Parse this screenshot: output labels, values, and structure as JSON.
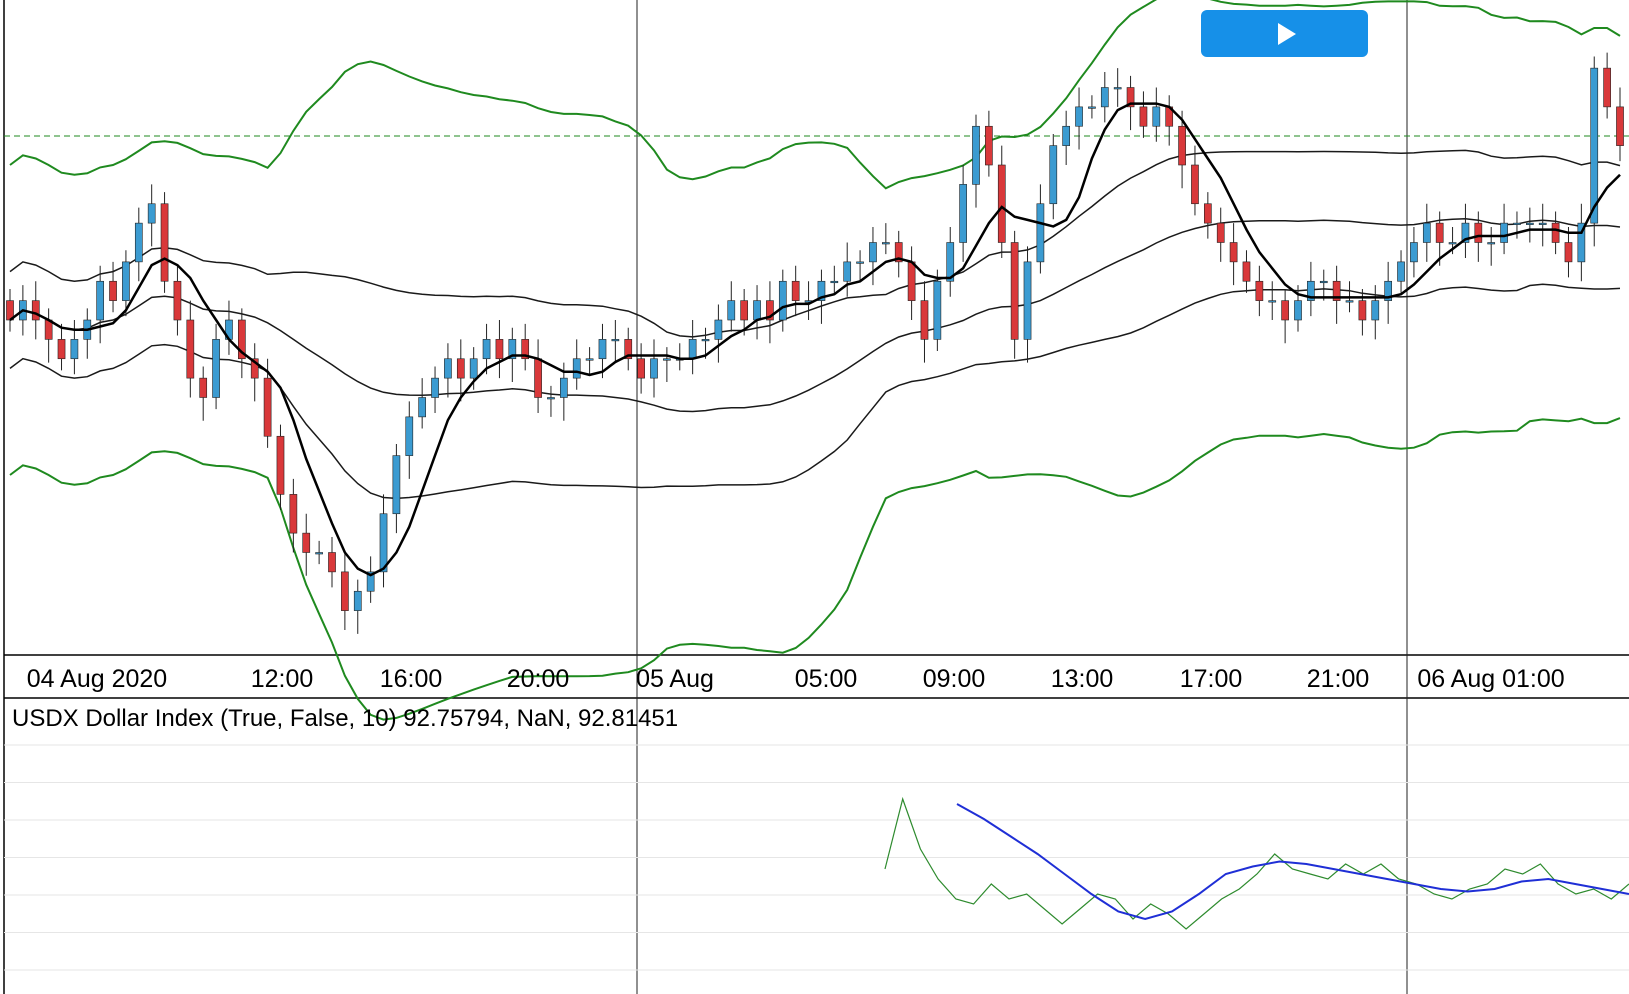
{
  "toolbar": {
    "play_icon": "play-icon",
    "accent": "#1690e8"
  },
  "colors": {
    "up_candle": "#3b9bd1",
    "down_candle": "#d9383a",
    "wick": "#222222",
    "band_outer": "#1f8a1f",
    "band_inner": "#1a1a1a",
    "ma": "#000000",
    "osc_fast": "#2e8b2e",
    "osc_slow": "#1f2fd6",
    "grid": "#e6e6e6",
    "session_line": "#222222"
  },
  "chart_data": [
    {
      "type": "candlestick",
      "xaxis": {
        "tick_labels": [
          "04 Aug 2020",
          "12:00",
          "16:00",
          "20:00",
          "05 Aug",
          "05:00",
          "09:00",
          "13:00",
          "17:00",
          "21:00",
          "06 Aug 01:00"
        ],
        "session_separators": [
          "05 Aug",
          "06 Aug"
        ]
      },
      "reference_level": 92.955,
      "yrange": [
        92.7,
        93.02
      ],
      "closes": [
        92.86,
        92.87,
        92.86,
        92.85,
        92.84,
        92.85,
        92.86,
        92.88,
        92.87,
        92.89,
        92.91,
        92.92,
        92.88,
        92.86,
        92.83,
        92.82,
        92.85,
        92.86,
        92.84,
        92.83,
        92.8,
        92.77,
        92.75,
        92.74,
        92.74,
        92.73,
        92.71,
        92.72,
        92.73,
        92.76,
        92.79,
        92.81,
        92.82,
        92.83,
        92.84,
        92.83,
        92.84,
        92.85,
        92.84,
        92.85,
        92.84,
        92.82,
        92.82,
        92.83,
        92.84,
        92.84,
        92.85,
        92.85,
        92.84,
        92.83,
        92.84,
        92.84,
        92.84,
        92.85,
        92.85,
        92.86,
        92.87,
        92.86,
        92.87,
        92.86,
        92.88,
        92.87,
        92.87,
        92.88,
        92.88,
        92.89,
        92.89,
        92.9,
        92.9,
        92.89,
        92.87,
        92.85,
        92.88,
        92.9,
        92.93,
        92.96,
        92.94,
        92.9,
        92.85,
        92.89,
        92.92,
        92.95,
        92.96,
        92.97,
        92.97,
        92.98,
        92.98,
        92.97,
        92.96,
        92.97,
        92.96,
        92.94,
        92.92,
        92.91,
        92.9,
        92.89,
        92.88,
        92.87,
        92.87,
        92.86,
        92.87,
        92.88,
        92.88,
        92.87,
        92.87,
        92.86,
        92.87,
        92.88,
        92.89,
        92.9,
        92.91,
        92.9,
        92.9,
        92.91,
        92.9,
        92.9,
        92.91,
        92.91,
        92.91,
        92.91,
        92.9,
        92.89,
        92.91,
        92.99,
        92.97,
        92.95
      ]
    },
    {
      "type": "line",
      "title": "USDX Dollar Index (True, False, 10) 92.75794, NaN, 92.81451",
      "series": [
        {
          "values": [
            0.42,
            0.7,
            0.5,
            0.38,
            0.3,
            0.28,
            0.36,
            0.3,
            0.32,
            0.26,
            0.2,
            0.26,
            0.32,
            0.3,
            0.22,
            0.28,
            0.24,
            0.18,
            0.24,
            0.3,
            0.34,
            0.4,
            0.48,
            0.42,
            0.4,
            0.38,
            0.44,
            0.4,
            0.44,
            0.38,
            0.36,
            0.32,
            0.3,
            0.34,
            0.36,
            0.42,
            0.4,
            0.44,
            0.36,
            0.32,
            0.34,
            0.3,
            0.36
          ]
        },
        {
          "values": [
            0.68,
            0.62,
            0.55,
            0.48,
            0.4,
            0.32,
            0.25,
            0.22,
            0.25,
            0.32,
            0.4,
            0.43,
            0.45,
            0.44,
            0.42,
            0.4,
            0.38,
            0.36,
            0.34,
            0.33,
            0.34,
            0.37,
            0.38,
            0.36,
            0.34,
            0.32
          ]
        }
      ]
    }
  ]
}
